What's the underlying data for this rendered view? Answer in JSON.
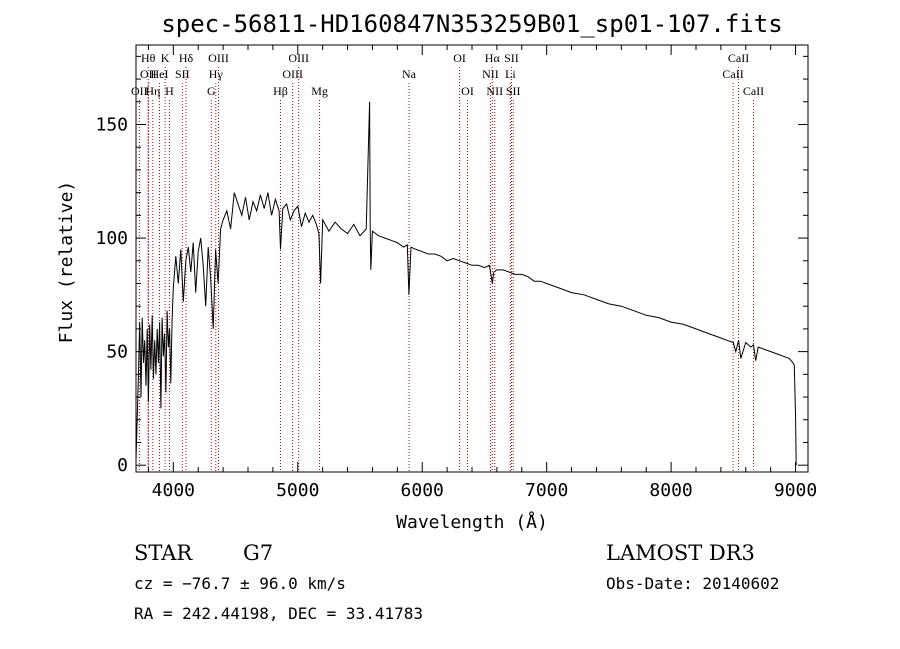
{
  "chart_data": {
    "type": "line",
    "title": "spec-56811-HD160847N353259B01_sp01-107.fits",
    "xlabel": "Wavelength (Å)",
    "ylabel": "Flux (relative)",
    "xlim": [
      3700,
      9100
    ],
    "ylim": [
      -3,
      185
    ],
    "x_ticks": [
      4000,
      5000,
      6000,
      7000,
      8000,
      9000
    ],
    "y_ticks": [
      0,
      50,
      100,
      150
    ],
    "series": [
      {
        "name": "flux",
        "x": [
          3700,
          3720,
          3730,
          3740,
          3750,
          3760,
          3770,
          3780,
          3790,
          3800,
          3810,
          3820,
          3830,
          3840,
          3850,
          3860,
          3870,
          3880,
          3890,
          3900,
          3910,
          3920,
          3930,
          3940,
          3950,
          3960,
          3970,
          3980,
          3990,
          4000,
          4020,
          4040,
          4060,
          4080,
          4100,
          4120,
          4140,
          4160,
          4180,
          4200,
          4220,
          4240,
          4260,
          4280,
          4300,
          4320,
          4340,
          4360,
          4380,
          4400,
          4430,
          4460,
          4490,
          4520,
          4550,
          4580,
          4610,
          4640,
          4670,
          4700,
          4730,
          4760,
          4790,
          4820,
          4850,
          4861,
          4880,
          4910,
          4940,
          4970,
          5000,
          5030,
          5060,
          5090,
          5120,
          5150,
          5170,
          5183,
          5200,
          5250,
          5300,
          5350,
          5400,
          5450,
          5500,
          5550,
          5577,
          5582,
          5587,
          5600,
          5650,
          5700,
          5750,
          5800,
          5850,
          5880,
          5893,
          5910,
          5950,
          6000,
          6050,
          6100,
          6150,
          6200,
          6250,
          6300,
          6350,
          6400,
          6450,
          6500,
          6540,
          6555,
          6563,
          6575,
          6600,
          6650,
          6700,
          6750,
          6800,
          6850,
          6900,
          6950,
          7000,
          7100,
          7200,
          7300,
          7400,
          7500,
          7600,
          7700,
          7800,
          7900,
          8000,
          8100,
          8200,
          8300,
          8400,
          8450,
          8500,
          8520,
          8542,
          8560,
          8600,
          8640,
          8662,
          8680,
          8700,
          8750,
          8800,
          8850,
          8900,
          8950,
          8980,
          8990,
          9000,
          9005
        ],
        "values": [
          2,
          40,
          63,
          30,
          65,
          45,
          55,
          35,
          60,
          28,
          62,
          42,
          66,
          38,
          55,
          40,
          60,
          45,
          63,
          25,
          65,
          48,
          58,
          32,
          68,
          52,
          60,
          36,
          64,
          78,
          92,
          80,
          95,
          72,
          90,
          96,
          85,
          98,
          76,
          94,
          100,
          88,
          70,
          96,
          82,
          60,
          95,
          80,
          104,
          108,
          112,
          104,
          120,
          115,
          110,
          118,
          108,
          116,
          112,
          119,
          113,
          120,
          110,
          117,
          112,
          95,
          113,
          115,
          108,
          112,
          114,
          105,
          111,
          107,
          110,
          106,
          102,
          80,
          108,
          103,
          107,
          104,
          102,
          106,
          101,
          104,
          160,
          105,
          86,
          103,
          101,
          100,
          99,
          98,
          96,
          97,
          75,
          96,
          95,
          94,
          93,
          93,
          92,
          90,
          91,
          90,
          89,
          88,
          88,
          87,
          88,
          83,
          80,
          85,
          86,
          86,
          85,
          84,
          84,
          83,
          81,
          81,
          80,
          78,
          76,
          75,
          73,
          71,
          70,
          68,
          66,
          65,
          63,
          62,
          60,
          58,
          56,
          55,
          54,
          50,
          55,
          47,
          54,
          52,
          53,
          46,
          52,
          51,
          50,
          49,
          48,
          47,
          45,
          44,
          20,
          0
        ]
      }
    ],
    "spectral_lines": [
      {
        "name": "OII",
        "wavelength": 3727,
        "row": 3
      },
      {
        "name": "Hθ",
        "wavelength": 3798,
        "row": 1
      },
      {
        "name": "OII",
        "wavelength": 3799,
        "row": 2
      },
      {
        "name": "Hη",
        "wavelength": 3835,
        "row": 3
      },
      {
        "name": "HeI",
        "wavelength": 3889,
        "row": 2
      },
      {
        "name": "K",
        "wavelength": 3934,
        "row": 1
      },
      {
        "name": "H",
        "wavelength": 3969,
        "row": 3
      },
      {
        "name": "SII",
        "wavelength": 4072,
        "row": 2
      },
      {
        "name": "Hδ",
        "wavelength": 4102,
        "row": 1
      },
      {
        "name": "G",
        "wavelength": 4305,
        "row": 3
      },
      {
        "name": "Hγ",
        "wavelength": 4341,
        "row": 2
      },
      {
        "name": "OIII",
        "wavelength": 4363,
        "row": 1
      },
      {
        "name": "Hβ",
        "wavelength": 4861,
        "row": 3
      },
      {
        "name": "OIII",
        "wavelength": 4959,
        "row": 2
      },
      {
        "name": "OIII",
        "wavelength": 5007,
        "row": 1
      },
      {
        "name": "Mg",
        "wavelength": 5175,
        "row": 3
      },
      {
        "name": "Na",
        "wavelength": 5894,
        "row": 2
      },
      {
        "name": "OI",
        "wavelength": 6300,
        "row": 1
      },
      {
        "name": "OI",
        "wavelength": 6364,
        "row": 3
      },
      {
        "name": "NII",
        "wavelength": 6548,
        "row": 2
      },
      {
        "name": "Hα",
        "wavelength": 6563,
        "row": 1
      },
      {
        "name": "NII",
        "wavelength": 6583,
        "row": 3
      },
      {
        "name": "Li",
        "wavelength": 6708,
        "row": 2
      },
      {
        "name": "SII",
        "wavelength": 6717,
        "row": 1
      },
      {
        "name": "SII",
        "wavelength": 6731,
        "row": 3
      },
      {
        "name": "CaII",
        "wavelength": 8498,
        "row": 2
      },
      {
        "name": "CaII",
        "wavelength": 8542,
        "row": 1
      },
      {
        "name": "CaII",
        "wavelength": 8662,
        "row": 3
      }
    ]
  },
  "info": {
    "class": "STAR",
    "subclass": "G7",
    "survey": "LAMOST DR3",
    "redshift": "cz = −76.7 ± 96.0 km/s",
    "obs_date": "Obs-Date: 20140602",
    "coords": "RA = 242.44198, DEC =  33.41783"
  },
  "colors": {
    "line_marker": "#a01010",
    "spectrum": "#000000"
  }
}
